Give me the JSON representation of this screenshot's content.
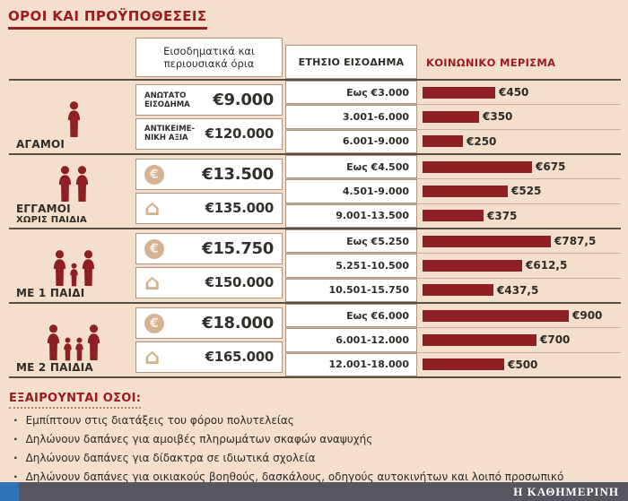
{
  "title": "ΟΡΟΙ ΚΑΙ ΠΡΟΫΠΟΘΕΣΕΙΣ",
  "colors": {
    "accent": "#9a1c1f",
    "bar": "#8e2023",
    "background": "#f3dfcc",
    "icon_tan": "#d3b392",
    "footer_bar": "#57555d",
    "logo_blue": "#2e74b5"
  },
  "icons": {
    "euro_coin": "€",
    "house": "⌂"
  },
  "table": {
    "limits_header": "Εισοδηματικά και περιουσιακά όρια",
    "income_header": "ΕΤΗΣΙΟ ΕΙΣΟΔΗΜΑ",
    "dividend_header": "ΚΟΙΝΩΝΙΚΟ ΜΕΡΙΣΜΑ",
    "rows": [
      {
        "category": "ΑΓΑΜΟΙ",
        "subcategory": "",
        "limits": [
          {
            "label": "ΑΝΩΤΑΤΟ ΕΙΣΟΔΗΜΑ",
            "value": "€9.000"
          },
          {
            "label": "ΑΝΤΙΚΕΙΜΕ- ΝΙΚΗ ΑΞΙΑ",
            "value": "€120.000"
          }
        ],
        "brackets": [
          {
            "range": "Εως €3.000",
            "amount": "€450"
          },
          {
            "range": "3.001-6.000",
            "amount": "€350"
          },
          {
            "range": "6.001-9.000",
            "amount": "€250"
          }
        ]
      },
      {
        "category": "ΕΓΓΑΜΟΙ",
        "subcategory": "ΧΩΡΙΣ ΠΑΙΔΙΑ",
        "limits": [
          {
            "label": "",
            "value": "€13.500"
          },
          {
            "label": "",
            "value": "€135.000"
          }
        ],
        "brackets": [
          {
            "range": "Εως €4.500",
            "amount": "€675"
          },
          {
            "range": "4.501-9.000",
            "amount": "€525"
          },
          {
            "range": "9.001-13.500",
            "amount": "€375"
          }
        ]
      },
      {
        "category": "ΜΕ 1 ΠΑΙΔΙ",
        "subcategory": "",
        "limits": [
          {
            "label": "",
            "value": "€15.750"
          },
          {
            "label": "",
            "value": "€150.000"
          }
        ],
        "brackets": [
          {
            "range": "Εως €5.250",
            "amount": "€787,5"
          },
          {
            "range": "5.251-10.500",
            "amount": "€612,5"
          },
          {
            "range": "10.501-15.750",
            "amount": "€437,5"
          }
        ]
      },
      {
        "category": "ΜΕ 2 ΠΑΙΔΙΑ",
        "subcategory": "",
        "limits": [
          {
            "label": "",
            "value": "€18.000"
          },
          {
            "label": "",
            "value": "€165.000"
          }
        ],
        "brackets": [
          {
            "range": "Εως €6.000",
            "amount": "€900"
          },
          {
            "range": "6.001-12.000",
            "amount": "€700"
          },
          {
            "range": "12.001-18.000",
            "amount": "€500"
          }
        ]
      }
    ]
  },
  "exclusions": {
    "title": "ΕΞΑΙΡΟΥΝΤΑΙ ΟΣΟΙ:",
    "bullet": "·",
    "items": [
      "Εμπίπτουν στις διατάξεις του φόρου πολυτελείας",
      "Δηλώνουν δαπάνες για αμοιβές πληρωμάτων σκαφών αναψυχής",
      "Δηλώνουν δαπάνες για δίδακτρα σε ιδιωτικά σχολεία",
      "Δηλώνουν δαπάνες για οικιακούς βοηθούς, δασκάλους, οδηγούς αυτοκινήτων και λοιπό προσωπικό"
    ]
  },
  "footer": {
    "source": "Η ΚΑΘΗΜΕΡΙΝΗ"
  },
  "chart_data": {
    "type": "bar",
    "title": "ΟΡΟΙ ΚΑΙ ΠΡΟΫΠΟΘΕΣΕΙΣ",
    "unit": "EUR",
    "xlim": [
      0,
      900
    ],
    "legend": [
      "ΕΤΗΣΙΟ ΕΙΣΟΔΗΜΑ",
      "ΚΟΙΝΩΝΙΚΟ ΜΕΡΙΣΜΑ"
    ],
    "groups": [
      {
        "category": "ΑΓΑΜΟΙ",
        "max_annual_income_eur": 9000,
        "max_property_value_eur": 120000,
        "bars": [
          {
            "income_bracket": "Εως €3.000",
            "dividend_eur": 450
          },
          {
            "income_bracket": "3.001-6.000",
            "dividend_eur": 350
          },
          {
            "income_bracket": "6.001-9.000",
            "dividend_eur": 250
          }
        ]
      },
      {
        "category": "ΕΓΓΑΜΟΙ ΧΩΡΙΣ ΠΑΙΔΙΑ",
        "max_annual_income_eur": 13500,
        "max_property_value_eur": 135000,
        "bars": [
          {
            "income_bracket": "Εως €4.500",
            "dividend_eur": 675
          },
          {
            "income_bracket": "4.501-9.000",
            "dividend_eur": 525
          },
          {
            "income_bracket": "9.001-13.500",
            "dividend_eur": 375
          }
        ]
      },
      {
        "category": "ΜΕ 1 ΠΑΙΔΙ",
        "max_annual_income_eur": 15750,
        "max_property_value_eur": 150000,
        "bars": [
          {
            "income_bracket": "Εως €5.250",
            "dividend_eur": 787.5
          },
          {
            "income_bracket": "5.251-10.500",
            "dividend_eur": 612.5
          },
          {
            "income_bracket": "10.501-15.750",
            "dividend_eur": 437.5
          }
        ]
      },
      {
        "category": "ΜΕ 2 ΠΑΙΔΙΑ",
        "max_annual_income_eur": 18000,
        "max_property_value_eur": 165000,
        "bars": [
          {
            "income_bracket": "Εως €6.000",
            "dividend_eur": 900
          },
          {
            "income_bracket": "6.001-12.000",
            "dividend_eur": 700
          },
          {
            "income_bracket": "12.001-18.000",
            "dividend_eur": 500
          }
        ]
      }
    ]
  }
}
